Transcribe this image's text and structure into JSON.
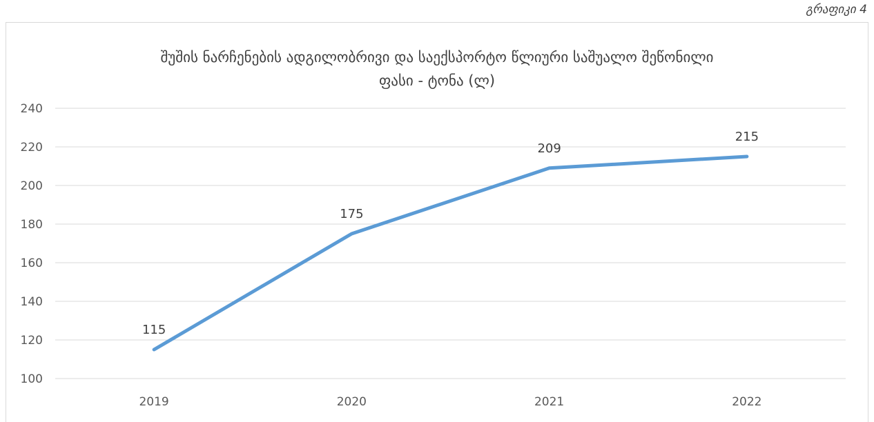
{
  "caption": "გრაფიკი 4",
  "chart_data": {
    "type": "line",
    "title_line1": "შუშის ნარჩენების ადგილობრივი და საექსპორტო წლიური საშუალო შეწონილი",
    "title_line2": "ფასი - ტონა (ლ)",
    "categories": [
      "2019",
      "2020",
      "2021",
      "2022"
    ],
    "series": [
      {
        "values": [
          115,
          175,
          209,
          215
        ],
        "labels": [
          "115",
          "175",
          "209",
          "215"
        ],
        "color": "#5b9bd5"
      }
    ],
    "ylim": [
      100,
      240
    ],
    "yticks": [
      100,
      120,
      140,
      160,
      180,
      200,
      220,
      240
    ],
    "grid": true,
    "gridColor": "#d9d9d9"
  }
}
